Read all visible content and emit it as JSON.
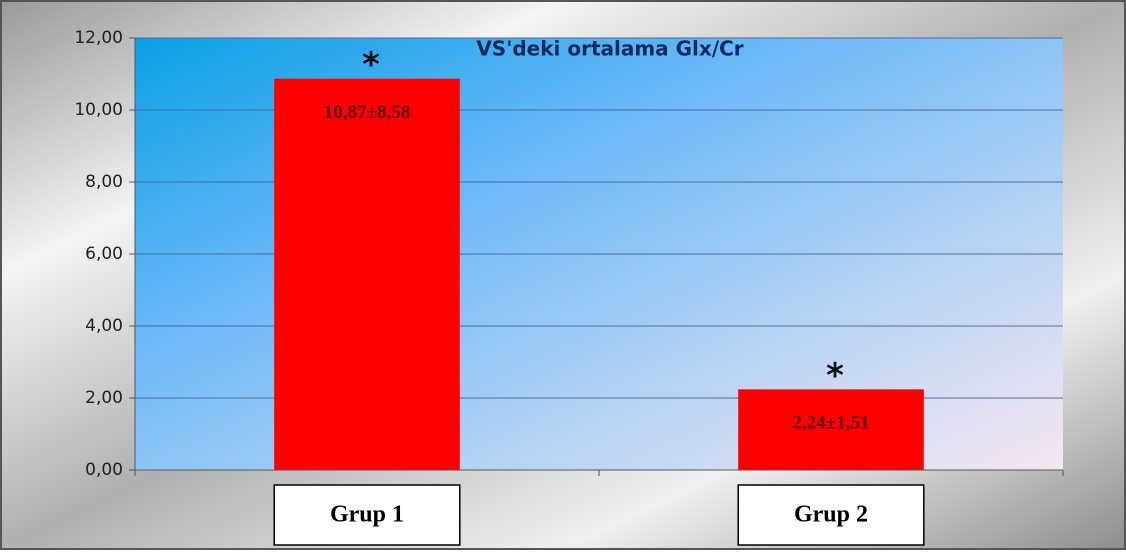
{
  "chart_data": {
    "type": "bar",
    "title": "VS'deki ortalama Glx/Cr",
    "categories": [
      "Grup 1",
      "Grup 2"
    ],
    "values": [
      10.87,
      2.24
    ],
    "value_labels": [
      "10,87±8,58",
      "2,24±1,51"
    ],
    "annotations": [
      "*",
      "*"
    ],
    "color": "#ff0000",
    "ylim": [
      0,
      12
    ],
    "yticks": [
      {
        "value": 0,
        "label": "0,00"
      },
      {
        "value": 2,
        "label": "2,00"
      },
      {
        "value": 4,
        "label": "4,00"
      },
      {
        "value": 6,
        "label": "6,00"
      },
      {
        "value": 8,
        "label": "8,00"
      },
      {
        "value": 10,
        "label": "10,00"
      },
      {
        "value": 12,
        "label": "12,00"
      }
    ],
    "grid": true
  }
}
